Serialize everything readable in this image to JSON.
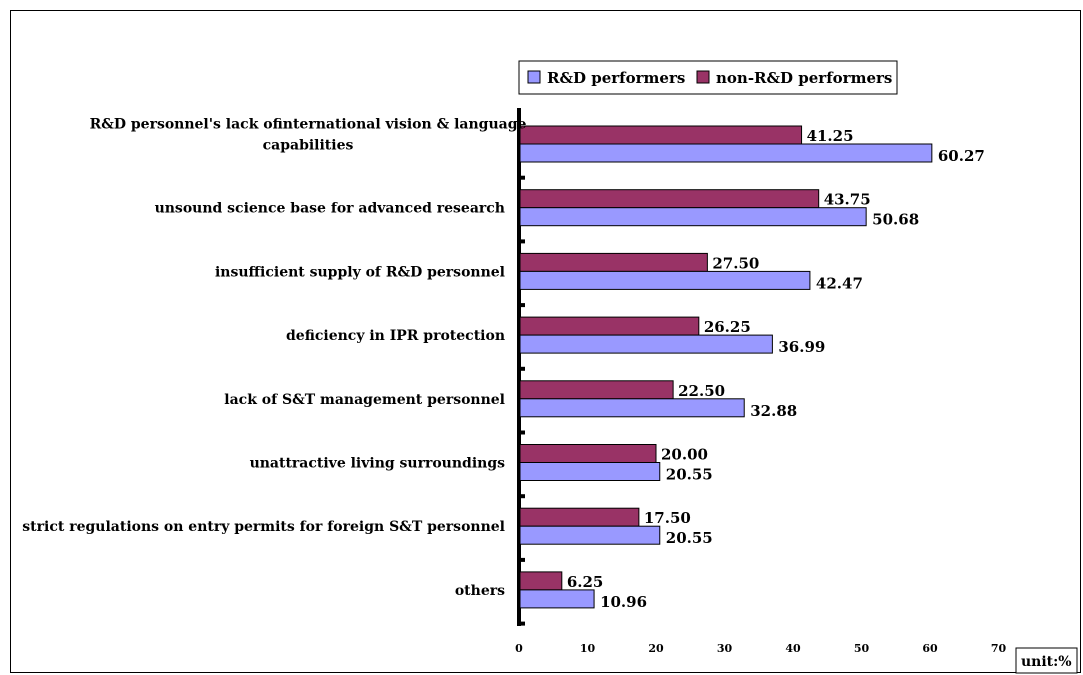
{
  "chart_data": {
    "type": "bar",
    "orientation": "horizontal",
    "categories": [
      "R&D personnel's lack ofinternational vision & language capabilities",
      "unsound science base for advanced research",
      "insufficient supply of R&D personnel",
      "deficiency in IPR protection",
      "lack of S&T management personnel",
      "unattractive living surroundings",
      "strict regulations on entry permits for foreign S&T personnel",
      "others"
    ],
    "category_lines": [
      [
        "R&D personnel's lack ofinternational vision & language",
        "capabilities"
      ],
      [
        "unsound science base for advanced research"
      ],
      [
        "insufficient supply of R&D personnel"
      ],
      [
        "deficiency in IPR protection"
      ],
      [
        "lack of S&T management personnel"
      ],
      [
        "unattractive living surroundings"
      ],
      [
        "strict regulations on entry permits for foreign S&T personnel"
      ],
      [
        "others"
      ]
    ],
    "series": [
      {
        "name": "R&D performers",
        "color": "#9999ff",
        "values": [
          60.27,
          50.68,
          42.47,
          36.99,
          32.88,
          20.55,
          20.55,
          10.96
        ],
        "labels": [
          "60.27",
          "50.68",
          "42.47",
          "36.99",
          "32.88",
          "20.55",
          "20.55",
          "10.96"
        ]
      },
      {
        "name": "non-R&D performers",
        "color": "#993366",
        "values": [
          41.25,
          43.75,
          27.5,
          26.25,
          22.5,
          20.0,
          17.5,
          6.25
        ],
        "labels": [
          "41.25",
          "43.75",
          "27.50",
          "26.25",
          "22.50",
          "20.00",
          "17.50",
          "6.25"
        ]
      }
    ],
    "xlim": [
      0,
      70
    ],
    "xticks": [
      0,
      10,
      20,
      30,
      40,
      50,
      60,
      70
    ],
    "xtick_labels": [
      "0",
      "10",
      "20",
      "30",
      "40",
      "50",
      "60",
      "70"
    ],
    "unit_label": "unit:%",
    "legend_position": "top",
    "grid": false,
    "title": "",
    "xlabel": "",
    "ylabel": ""
  }
}
